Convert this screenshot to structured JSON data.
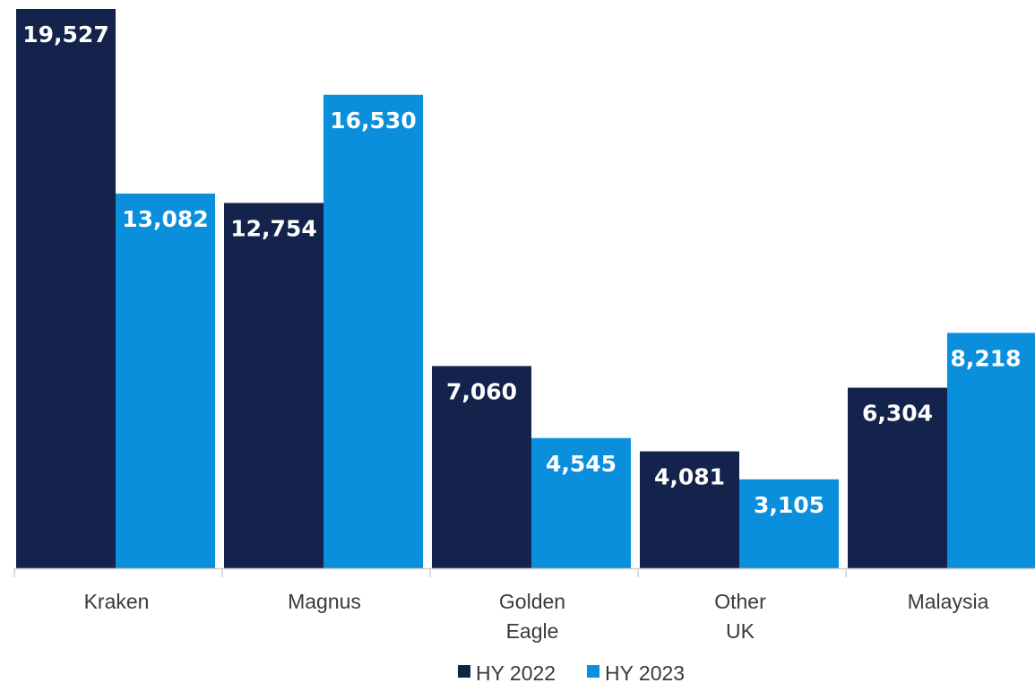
{
  "chart_data": {
    "type": "bar",
    "title": "",
    "xlabel": "",
    "ylabel": "",
    "ylim": [
      0,
      20000
    ],
    "grid": false,
    "legend_position": "bottom",
    "categories": [
      [
        "Kraken"
      ],
      [
        "Magnus"
      ],
      [
        "Golden",
        "Eagle"
      ],
      [
        "Other",
        "UK"
      ],
      [
        "Malaysia"
      ]
    ],
    "series": [
      {
        "name": "HY 2022",
        "color": "#14234b",
        "values": [
          19527,
          12754,
          7060,
          4081,
          6304
        ],
        "labels": [
          "19,527",
          "12,754",
          "7,060",
          "4,081",
          "6,304"
        ]
      },
      {
        "name": "HY 2023",
        "color": "#0a8fdc",
        "values": [
          13082,
          16530,
          4545,
          3105,
          8218
        ],
        "labels": [
          "13,082",
          "16,530",
          "4,545",
          "3,105",
          "8,218"
        ]
      }
    ]
  }
}
